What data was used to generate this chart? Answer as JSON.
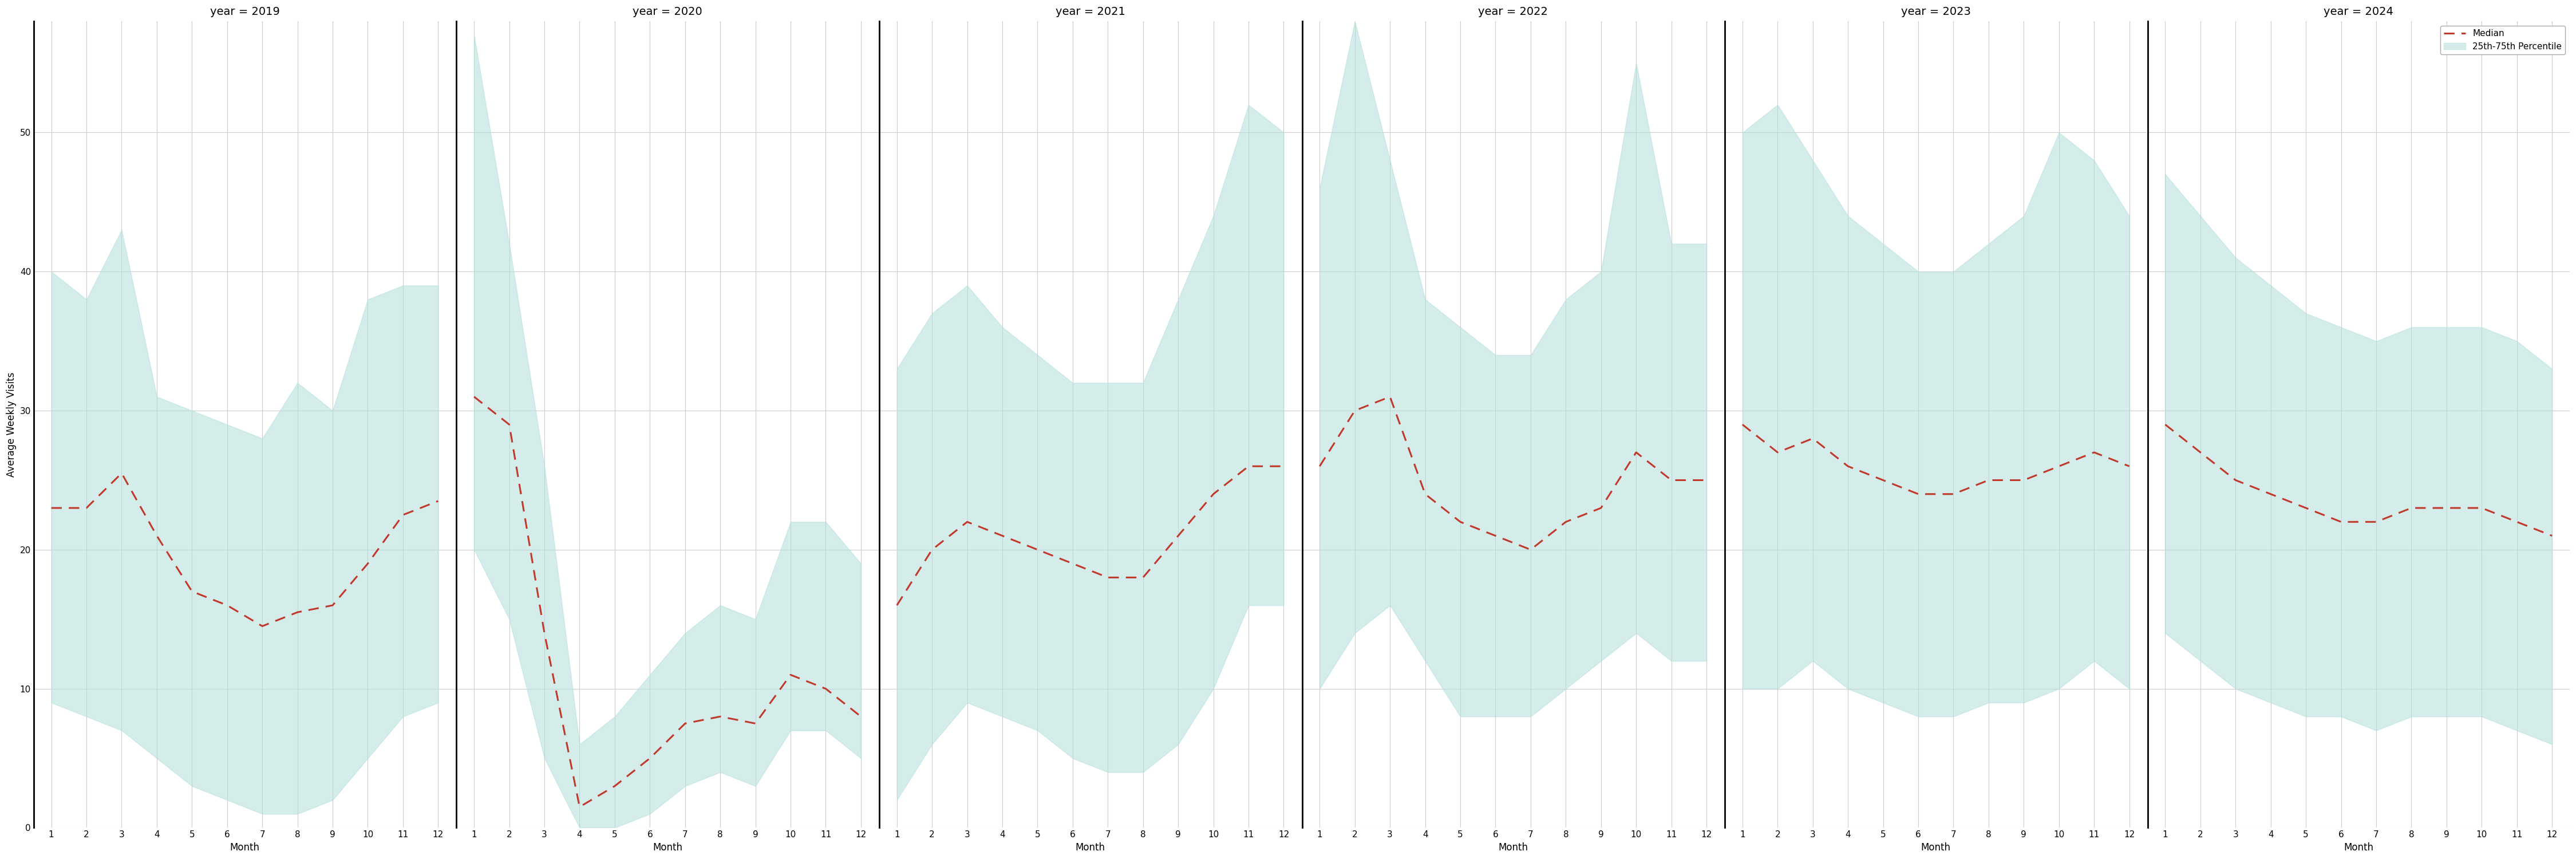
{
  "years": [
    2019,
    2020,
    2021,
    2022,
    2023,
    2024
  ],
  "months": [
    1,
    2,
    3,
    4,
    5,
    6,
    7,
    8,
    9,
    10,
    11,
    12
  ],
  "median": {
    "2019": [
      23,
      23,
      25.5,
      21,
      17,
      16,
      14.5,
      15.5,
      16,
      19,
      22.5,
      23.5
    ],
    "2020": [
      31,
      29,
      14,
      1.5,
      3,
      5,
      7.5,
      8,
      7.5,
      11,
      10,
      8
    ],
    "2021": [
      16,
      20,
      22,
      21,
      20,
      19,
      18,
      18,
      21,
      24,
      26,
      26
    ],
    "2022": [
      26,
      30,
      31,
      24,
      22,
      21,
      20,
      22,
      23,
      27,
      25,
      25
    ],
    "2023": [
      29,
      27,
      28,
      26,
      25,
      24,
      24,
      25,
      25,
      26,
      27,
      26
    ],
    "2024": [
      29,
      27,
      25,
      24,
      23,
      22,
      22,
      23,
      23,
      23,
      22,
      21
    ]
  },
  "p25": {
    "2019": [
      9,
      8,
      7,
      5,
      3,
      2,
      1,
      1,
      2,
      5,
      8,
      9
    ],
    "2020": [
      20,
      15,
      5,
      0,
      0,
      1,
      3,
      4,
      3,
      7,
      7,
      5
    ],
    "2021": [
      2,
      6,
      9,
      8,
      7,
      5,
      4,
      4,
      6,
      10,
      16,
      16
    ],
    "2022": [
      10,
      14,
      16,
      12,
      8,
      8,
      8,
      10,
      12,
      14,
      12,
      12
    ],
    "2023": [
      10,
      10,
      12,
      10,
      9,
      8,
      8,
      9,
      9,
      10,
      12,
      10
    ],
    "2024": [
      14,
      12,
      10,
      9,
      8,
      8,
      7,
      8,
      8,
      8,
      7,
      6
    ]
  },
  "p75": {
    "2019": [
      40,
      38,
      43,
      31,
      30,
      29,
      28,
      32,
      30,
      38,
      39,
      39
    ],
    "2020": [
      57,
      42,
      26,
      6,
      8,
      11,
      14,
      16,
      15,
      22,
      22,
      19
    ],
    "2021": [
      33,
      37,
      39,
      36,
      34,
      32,
      32,
      32,
      38,
      44,
      52,
      50
    ],
    "2022": [
      46,
      58,
      48,
      38,
      36,
      34,
      34,
      38,
      40,
      55,
      42,
      42
    ],
    "2023": [
      50,
      52,
      48,
      44,
      42,
      40,
      40,
      42,
      44,
      50,
      48,
      44
    ],
    "2024": [
      47,
      44,
      41,
      39,
      37,
      36,
      35,
      36,
      36,
      36,
      35,
      33
    ]
  },
  "fill_color": "#b2dfdb",
  "fill_alpha": 0.55,
  "line_color": "#c0392b",
  "background_color": "#ffffff",
  "grid_color": "#cccccc",
  "ylabel": "Average Weekly Visits",
  "xlabel": "Month",
  "ylim": [
    0,
    58
  ],
  "yticks": [
    0,
    10,
    20,
    30,
    40,
    50
  ],
  "xticks": [
    1,
    2,
    3,
    4,
    5,
    6,
    7,
    8,
    9,
    10,
    11,
    12
  ],
  "legend_median_label": "Median",
  "legend_fill_label": "25th-75th Percentile",
  "title_fontsize": 14,
  "label_fontsize": 12,
  "tick_fontsize": 11,
  "linewidth": 2.2
}
